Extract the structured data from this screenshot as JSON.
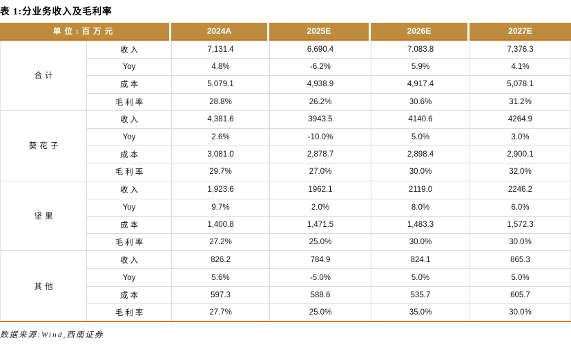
{
  "title": "表 1:分业务收入及毛利率",
  "table": {
    "unit_label": "单位:百万元",
    "col_headers": [
      "2024A",
      "2025E",
      "2026E",
      "2027E"
    ],
    "sections": [
      {
        "name": "合计",
        "rows": [
          {
            "label": "收入",
            "values": [
              "7,131.4",
              "6,690.4",
              "7,083.8",
              "7,376.3"
            ]
          },
          {
            "label": "Yoy",
            "values": [
              "4.8%",
              "-6.2%",
              "5.9%",
              "4.1%"
            ]
          },
          {
            "label": "成本",
            "values": [
              "5,079.1",
              "4,938.9",
              "4,917.4",
              "5,078.1"
            ]
          },
          {
            "label": "毛利率",
            "values": [
              "28.8%",
              "26.2%",
              "30.6%",
              "31.2%"
            ]
          }
        ]
      },
      {
        "name": "葵花子",
        "rows": [
          {
            "label": "收入",
            "values": [
              "4,381.6",
              "3943.5",
              "4140.6",
              "4264.9"
            ]
          },
          {
            "label": "Yoy",
            "values": [
              "2.6%",
              "-10.0%",
              "5.0%",
              "3.0%"
            ]
          },
          {
            "label": "成本",
            "values": [
              "3,081.0",
              "2,878.7",
              "2,898.4",
              "2,900.1"
            ]
          },
          {
            "label": "毛利率",
            "values": [
              "29.7%",
              "27.0%",
              "30.0%",
              "32.0%"
            ]
          }
        ]
      },
      {
        "name": "坚果",
        "rows": [
          {
            "label": "收入",
            "values": [
              "1,923.6",
              "1962.1",
              "2119.0",
              "2246.2"
            ]
          },
          {
            "label": "Yoy",
            "values": [
              "9.7%",
              "2.0%",
              "8.0%",
              "6.0%"
            ]
          },
          {
            "label": "成本",
            "values": [
              "1,400.8",
              "1,471.5",
              "1,483.3",
              "1,572.3"
            ]
          },
          {
            "label": "毛利率",
            "values": [
              "27.2%",
              "25.0%",
              "30.0%",
              "30.0%"
            ]
          }
        ]
      },
      {
        "name": "其他",
        "rows": [
          {
            "label": "收入",
            "values": [
              "826.2",
              "784.9",
              "824.1",
              "865.3"
            ]
          },
          {
            "label": "Yoy",
            "values": [
              "5.6%",
              "-5.0%",
              "5.0%",
              "5.0%"
            ]
          },
          {
            "label": "成本",
            "values": [
              "597.3",
              "588.6",
              "535.7",
              "605.7"
            ]
          },
          {
            "label": "毛利率",
            "values": [
              "27.7%",
              "25.0%",
              "35.0%",
              "30.0%"
            ]
          }
        ]
      }
    ]
  },
  "footer": {
    "source": "数据来源:Wind,西南证券"
  },
  "colors": {
    "header_gold": "#BE8C3E",
    "accent_line": "#C8802C",
    "grid_line": "#D9D9D9"
  }
}
